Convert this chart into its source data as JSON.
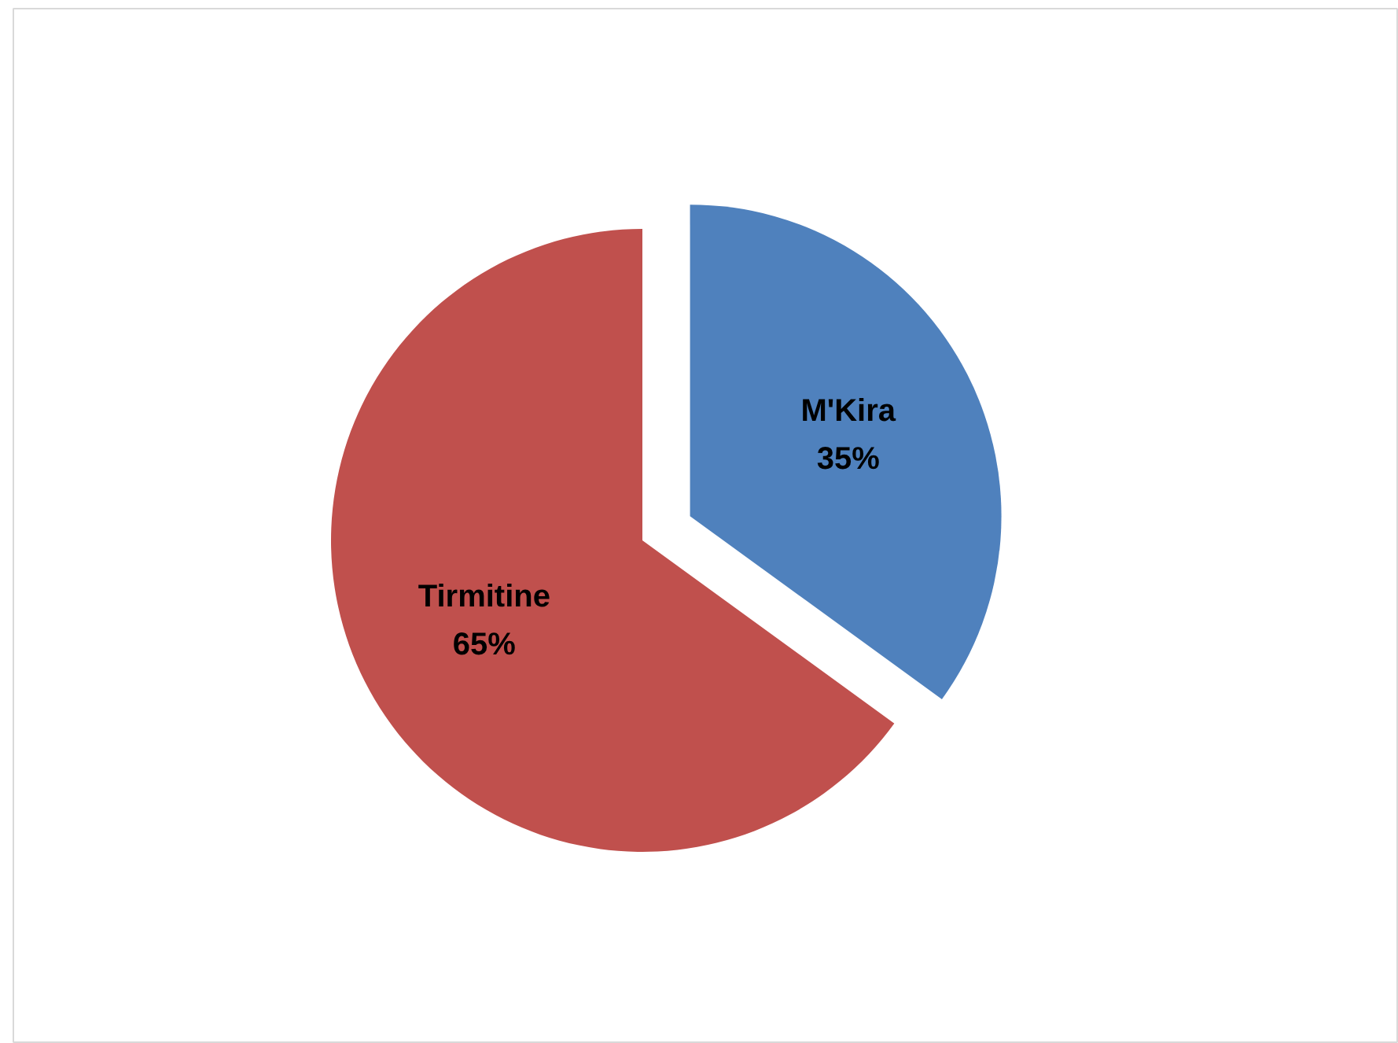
{
  "chart_data": {
    "type": "pie",
    "categories": [
      "M'Kira",
      "Tirmitine"
    ],
    "values": [
      35,
      65
    ],
    "colors": [
      "#4f81bd",
      "#c0504d"
    ],
    "value_labels": [
      "35%",
      "65%"
    ]
  }
}
